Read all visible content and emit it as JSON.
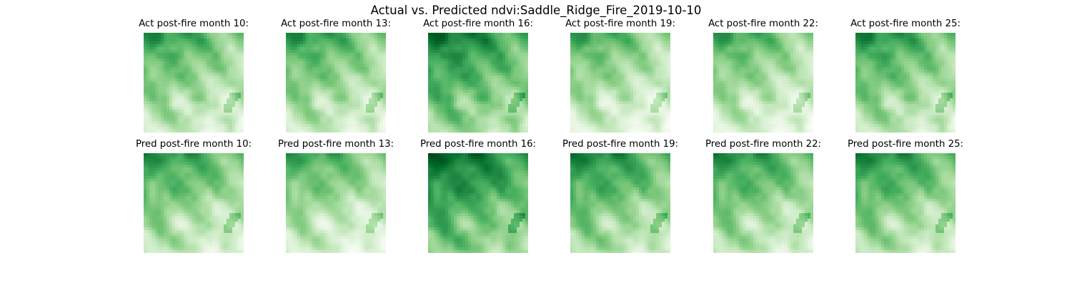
{
  "figure": {
    "title": "Actual vs. Predicted ndvi:Saddle_Ridge_Fire_2019-10-10"
  },
  "colormap": {
    "name": "Greens",
    "stops": [
      "#f7fcf5",
      "#e5f5e0",
      "#c7e9c0",
      "#a1d99b",
      "#74c476",
      "#41ab5d",
      "#238b45",
      "#006d2c",
      "#00441b"
    ]
  },
  "chart_data": [
    {
      "type": "heatmap",
      "row": "actual",
      "title": "Act post-fire month 10:",
      "month": 10,
      "brightness_level": 0.0,
      "seed": 11
    },
    {
      "type": "heatmap",
      "row": "actual",
      "title": "Act post-fire month 13:",
      "month": 13,
      "brightness_level": 0.0,
      "seed": 11
    },
    {
      "type": "heatmap",
      "row": "actual",
      "title": "Act post-fire month 16:",
      "month": 16,
      "brightness_level": 0.14,
      "seed": 11
    },
    {
      "type": "heatmap",
      "row": "actual",
      "title": "Act post-fire month 19:",
      "month": 19,
      "brightness_level": -0.06,
      "seed": 11
    },
    {
      "type": "heatmap",
      "row": "actual",
      "title": "Act post-fire month 22:",
      "month": 22,
      "brightness_level": -0.05,
      "seed": 11
    },
    {
      "type": "heatmap",
      "row": "actual",
      "title": "Act post-fire month 25:",
      "month": 25,
      "brightness_level": 0.04,
      "seed": 11
    },
    {
      "type": "heatmap",
      "row": "predicted",
      "title": "Pred post-fire month 10:",
      "month": 10,
      "brightness_level": 0.02,
      "seed": 23
    },
    {
      "type": "heatmap",
      "row": "predicted",
      "title": "Pred post-fire month 13:",
      "month": 13,
      "brightness_level": -0.04,
      "seed": 23
    },
    {
      "type": "heatmap",
      "row": "predicted",
      "title": "Pred post-fire month 16:",
      "month": 16,
      "brightness_level": 0.2,
      "seed": 23
    },
    {
      "type": "heatmap",
      "row": "predicted",
      "title": "Pred post-fire month 19:",
      "month": 19,
      "brightness_level": 0.08,
      "seed": 23
    },
    {
      "type": "heatmap",
      "row": "predicted",
      "title": "Pred post-fire month 22:",
      "month": 22,
      "brightness_level": 0.04,
      "seed": 23
    },
    {
      "type": "heatmap",
      "row": "predicted",
      "title": "Pred post-fire month 25:",
      "month": 25,
      "brightness_level": 0.06,
      "seed": 23
    }
  ]
}
